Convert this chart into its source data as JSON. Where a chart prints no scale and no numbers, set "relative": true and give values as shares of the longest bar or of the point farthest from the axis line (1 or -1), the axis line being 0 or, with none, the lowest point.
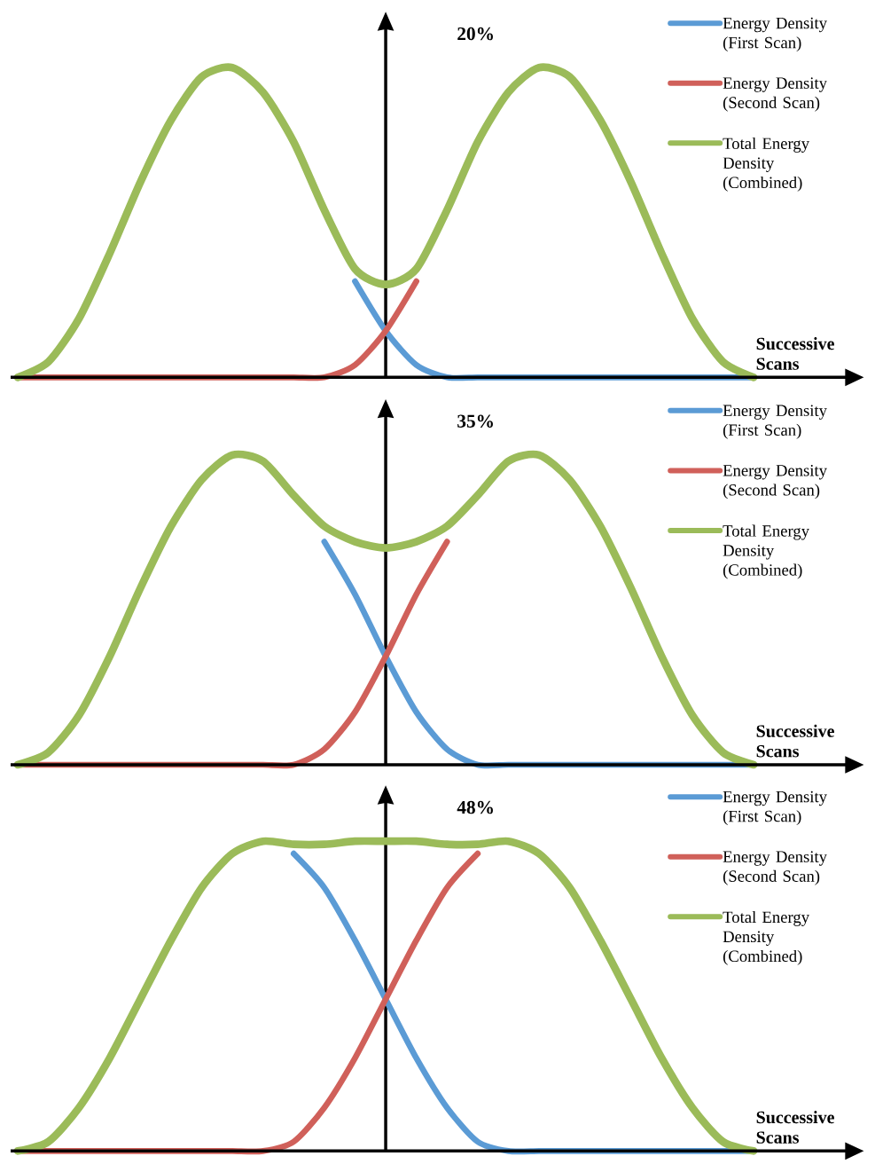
{
  "chart_data": [
    {
      "type": "line",
      "title": "20%",
      "xlabel": "Successive Scans",
      "relative": true,
      "legend": "top right",
      "categories": [
        null,
        null,
        null,
        null,
        null,
        null,
        null,
        null,
        null,
        null,
        null,
        null,
        null,
        null,
        null,
        null,
        null,
        null,
        null,
        null,
        null,
        null,
        null,
        null,
        null
      ],
      "series": [
        {
          "name": "Energy Density (First Scan)",
          "color": "#5b9bd5",
          "values": [
            null,
            null,
            null,
            null,
            null,
            null,
            null,
            null,
            null,
            null,
            null,
            0.31,
            0.15,
            0.04,
            0,
            0,
            0,
            0,
            0,
            0,
            0,
            0,
            0,
            0,
            0
          ]
        },
        {
          "name": "Energy Density (Second Scan)",
          "color": "#d0605a",
          "values": [
            0,
            0,
            0,
            0,
            0,
            0,
            0,
            0,
            0,
            0,
            0,
            0.04,
            0.15,
            0.31,
            null,
            null,
            null,
            null,
            null,
            null,
            null,
            null,
            null,
            null,
            null
          ]
        },
        {
          "name": "Total Energy Density (Combined)",
          "color": "#9bbb59",
          "values": [
            0,
            0.05,
            0.19,
            0.4,
            0.63,
            0.83,
            0.97,
            1,
            0.92,
            0.76,
            0.54,
            0.35,
            0.3,
            0.35,
            0.54,
            0.76,
            0.92,
            1,
            0.97,
            0.83,
            0.63,
            0.4,
            0.19,
            0.05,
            0
          ]
        }
      ]
    },
    {
      "type": "line",
      "title": "35%",
      "xlabel": "Successive Scans",
      "relative": true,
      "legend": "top right",
      "categories": [
        null,
        null,
        null,
        null,
        null,
        null,
        null,
        null,
        null,
        null,
        null,
        null,
        null,
        null,
        null,
        null,
        null,
        null,
        null,
        null,
        null,
        null,
        null,
        null,
        null
      ],
      "series": [
        {
          "name": "Energy Density (First Scan)",
          "color": "#5b9bd5",
          "values": [
            null,
            null,
            null,
            null,
            null,
            null,
            null,
            null,
            null,
            null,
            0.72,
            0.55,
            0.35,
            0.17,
            0.05,
            0,
            0,
            0,
            0,
            0,
            0,
            0,
            0,
            0,
            0
          ]
        },
        {
          "name": "Energy Density (Second Scan)",
          "color": "#d0605a",
          "values": [
            0,
            0,
            0,
            0,
            0,
            0,
            0,
            0,
            0,
            0,
            0.05,
            0.17,
            0.35,
            0.55,
            0.72,
            null,
            null,
            null,
            null,
            null,
            null,
            null,
            null,
            null,
            null
          ]
        },
        {
          "name": "Total Energy Density (Combined)",
          "color": "#9bbb59",
          "values": [
            0,
            0.04,
            0.16,
            0.35,
            0.57,
            0.77,
            0.92,
            1,
            0.98,
            0.87,
            0.77,
            0.72,
            0.7,
            0.72,
            0.77,
            0.87,
            0.98,
            1,
            0.92,
            0.77,
            0.57,
            0.35,
            0.16,
            0.04,
            0
          ]
        }
      ]
    },
    {
      "type": "line",
      "title": "48%",
      "xlabel": "Successive Scans",
      "relative": true,
      "legend": "top right",
      "categories": [
        null,
        null,
        null,
        null,
        null,
        null,
        null,
        null,
        null,
        null,
        null,
        null,
        null,
        null,
        null,
        null,
        null,
        null,
        null,
        null,
        null,
        null,
        null,
        null,
        null
      ],
      "series": [
        {
          "name": "Energy Density (First Scan)",
          "color": "#5b9bd5",
          "values": [
            null,
            null,
            null,
            null,
            null,
            null,
            null,
            null,
            null,
            0.96,
            0.85,
            0.68,
            0.49,
            0.3,
            0.14,
            0.03,
            0,
            0,
            0,
            0,
            0,
            0,
            0,
            0,
            0
          ]
        },
        {
          "name": "Energy Density (Second Scan)",
          "color": "#d0605a",
          "values": [
            0,
            0,
            0,
            0,
            0,
            0,
            0,
            0,
            0,
            0.03,
            0.14,
            0.3,
            0.49,
            0.68,
            0.85,
            0.96,
            null,
            null,
            null,
            null,
            null,
            null,
            null,
            null,
            null
          ]
        },
        {
          "name": "Total Energy Density (Combined)",
          "color": "#9bbb59",
          "values": [
            0,
            0.03,
            0.14,
            0.3,
            0.49,
            0.68,
            0.85,
            0.96,
            1,
            0.99,
            0.99,
            1,
            1,
            1,
            0.99,
            0.99,
            1,
            0.96,
            0.85,
            0.68,
            0.49,
            0.3,
            0.14,
            0.03,
            0
          ]
        }
      ]
    }
  ]
}
